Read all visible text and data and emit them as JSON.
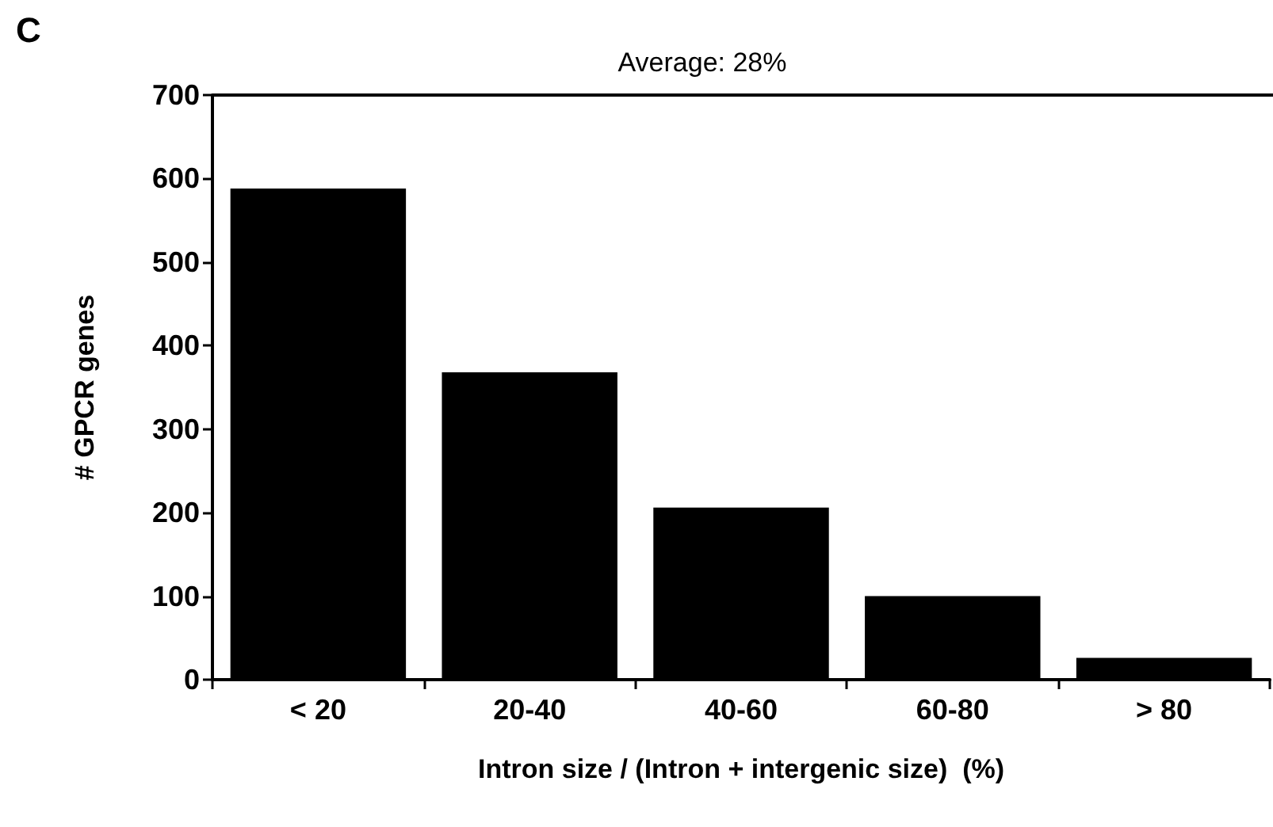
{
  "chart_data": {
    "type": "bar",
    "title": "Average: 28%",
    "xlabel": "Intron size / (Intron + intergenic size)  (%)",
    "ylabel": "# GPCR genes",
    "annotations": [
      "C"
    ],
    "categories": [
      "< 20",
      "20-40",
      "40-60",
      "60-80",
      "> 80"
    ],
    "values": [
      588,
      368,
      206,
      100,
      26
    ],
    "color": "#000000",
    "ylim": [
      0,
      700
    ],
    "yticks": [
      0,
      100,
      200,
      300,
      400,
      500,
      600,
      700
    ],
    "grid": false
  }
}
